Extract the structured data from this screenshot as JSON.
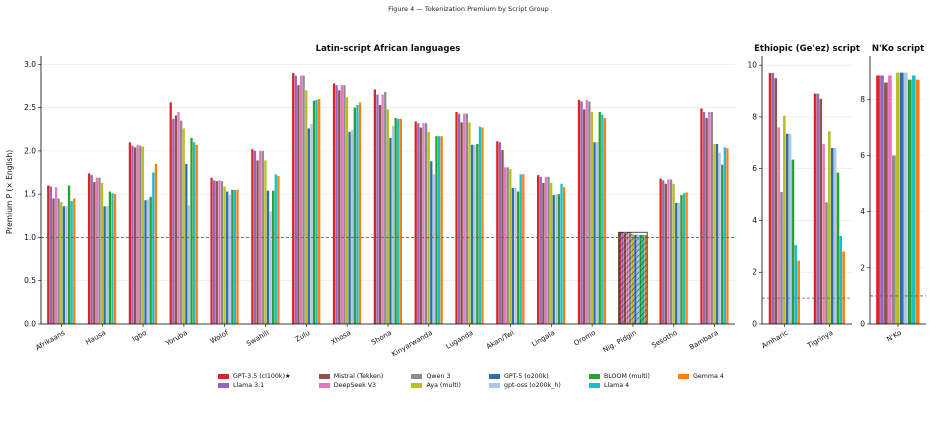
{
  "figure_title": "Figure 4 — Tokenization Premium by Script Group",
  "colors": {
    "GPT-3.5 (cl100k)★": "#d62728",
    "Llama 3.1": "#9467bd",
    "Mistral (Tekken)": "#8c564b",
    "DeepSeek V3": "#e377c2",
    "Qwen 3": "#8c8c8c",
    "Aya (multi)": "#bcbd22",
    "GPT-5 (o200k)": "#2f6fa8",
    "gpt-oss (o200k_h)": "#aec7e8",
    "BLOOM (multi)": "#2ca02c",
    "Llama 4": "#17becf",
    "Gemma 4": "#ff7f0e"
  },
  "legend": [
    "GPT-3.5 (cl100k)★",
    "Mistral (Tekken)",
    "Qwen 3",
    "GPT-5 (o200k)",
    "BLOOM (multi)",
    "Gemma 4",
    "Llama 3.1",
    "DeepSeek V3",
    "Aya (multi)",
    "gpt-oss (o200k_h)",
    "Llama 4"
  ],
  "chart_data": [
    {
      "type": "bar",
      "title": "Latin-script African languages",
      "ylabel": "Premium P (× English)",
      "ylim": [
        0,
        3.05
      ],
      "yticks": [
        "0.0",
        "0.5",
        "1.0",
        "1.5",
        "2.0",
        "2.5",
        "3.0"
      ],
      "reference_line": 1.0,
      "hatched_category": "Nig. Pidgin",
      "series_order": [
        "GPT-3.5 (cl100k)★",
        "Llama 3.1",
        "Mistral (Tekken)",
        "DeepSeek V3",
        "Qwen 3",
        "Aya (multi)",
        "GPT-5 (o200k)",
        "gpt-oss (o200k_h)",
        "BLOOM (multi)",
        "Llama 4",
        "Gemma 4"
      ],
      "categories": [
        "Afrikaans",
        "Hausa",
        "Igbo",
        "Yoruba",
        "Wolof",
        "Swahili",
        "Zulu",
        "Xhosa",
        "Shona",
        "Kinyarwanda",
        "Luganda",
        "Akan/Twi",
        "Lingala",
        "Oromo",
        "Nig. Pidgin",
        "Sesotho",
        "Bambara"
      ],
      "values": [
        [
          1.6,
          1.59,
          1.45,
          1.58,
          1.45,
          1.41,
          1.36,
          1.36,
          1.6,
          1.42,
          1.45
        ],
        [
          1.74,
          1.72,
          1.64,
          1.69,
          1.69,
          1.63,
          1.36,
          1.36,
          1.53,
          1.51,
          1.5
        ],
        [
          2.1,
          2.06,
          2.04,
          2.07,
          2.06,
          2.05,
          1.43,
          1.44,
          1.47,
          1.75,
          1.85
        ],
        [
          2.56,
          2.37,
          2.41,
          2.45,
          2.35,
          2.26,
          1.85,
          1.37,
          2.15,
          2.1,
          2.07
        ],
        [
          1.69,
          1.66,
          1.65,
          1.66,
          1.65,
          1.59,
          1.53,
          1.49,
          1.55,
          1.55,
          1.55
        ],
        [
          2.02,
          2.0,
          1.89,
          2.0,
          2.0,
          1.89,
          1.54,
          1.3,
          1.54,
          1.73,
          1.71
        ],
        [
          2.9,
          2.87,
          2.76,
          2.87,
          2.87,
          2.7,
          2.26,
          2.31,
          2.58,
          2.59,
          2.6
        ],
        [
          2.78,
          2.76,
          2.7,
          2.76,
          2.76,
          2.62,
          2.22,
          2.24,
          2.5,
          2.53,
          2.56
        ],
        [
          2.71,
          2.65,
          2.53,
          2.65,
          2.68,
          2.48,
          2.15,
          2.29,
          2.38,
          2.37,
          2.37
        ],
        [
          2.34,
          2.32,
          2.27,
          2.32,
          2.32,
          2.22,
          1.88,
          1.73,
          2.17,
          2.17,
          2.17
        ],
        [
          2.45,
          2.43,
          2.33,
          2.43,
          2.43,
          2.33,
          2.07,
          2.07,
          2.08,
          2.28,
          2.27
        ],
        [
          2.11,
          2.1,
          2.01,
          1.81,
          1.81,
          1.79,
          1.57,
          1.57,
          1.53,
          1.73,
          1.73
        ],
        [
          1.72,
          1.7,
          1.63,
          1.7,
          1.7,
          1.63,
          1.49,
          1.5,
          1.5,
          1.62,
          1.58
        ],
        [
          2.59,
          2.57,
          2.48,
          2.59,
          2.57,
          2.45,
          2.1,
          2.1,
          2.45,
          2.42,
          2.38
        ],
        [
          1.06,
          1.06,
          1.05,
          1.06,
          1.06,
          1.04,
          1.03,
          1.03,
          1.03,
          1.03,
          1.03
        ],
        [
          1.68,
          1.66,
          1.62,
          1.67,
          1.67,
          1.62,
          1.4,
          1.4,
          1.49,
          1.51,
          1.52
        ],
        [
          2.49,
          2.45,
          2.38,
          2.45,
          2.45,
          2.08,
          2.08,
          1.98,
          1.84,
          2.04,
          2.03
        ]
      ]
    },
    {
      "type": "bar",
      "title": "Ethiopic (Ge'ez) script",
      "ylim": [
        0,
        10.2
      ],
      "yticks": [
        "0",
        "2",
        "4",
        "6",
        "8",
        "10"
      ],
      "reference_line": 1.0,
      "categories": [
        "Amharic",
        "Tigrinya"
      ],
      "values": [
        [
          9.7,
          9.7,
          9.5,
          7.6,
          5.1,
          8.05,
          7.35,
          7.35,
          6.35,
          3.05,
          2.45
        ],
        [
          8.9,
          8.9,
          8.7,
          6.95,
          4.7,
          7.45,
          6.8,
          6.8,
          5.85,
          3.4,
          2.8
        ]
      ]
    },
    {
      "type": "bar",
      "title": "N'Ko script",
      "ylim": [
        0,
        9.4
      ],
      "yticks": [
        "0",
        "2",
        "4",
        "6",
        "8"
      ],
      "reference_line": 1.0,
      "categories": [
        "N'Ko"
      ],
      "values": [
        [
          8.85,
          8.85,
          8.6,
          8.85,
          6.0,
          8.95,
          8.95,
          8.95,
          8.7,
          8.85,
          8.7
        ]
      ]
    }
  ]
}
